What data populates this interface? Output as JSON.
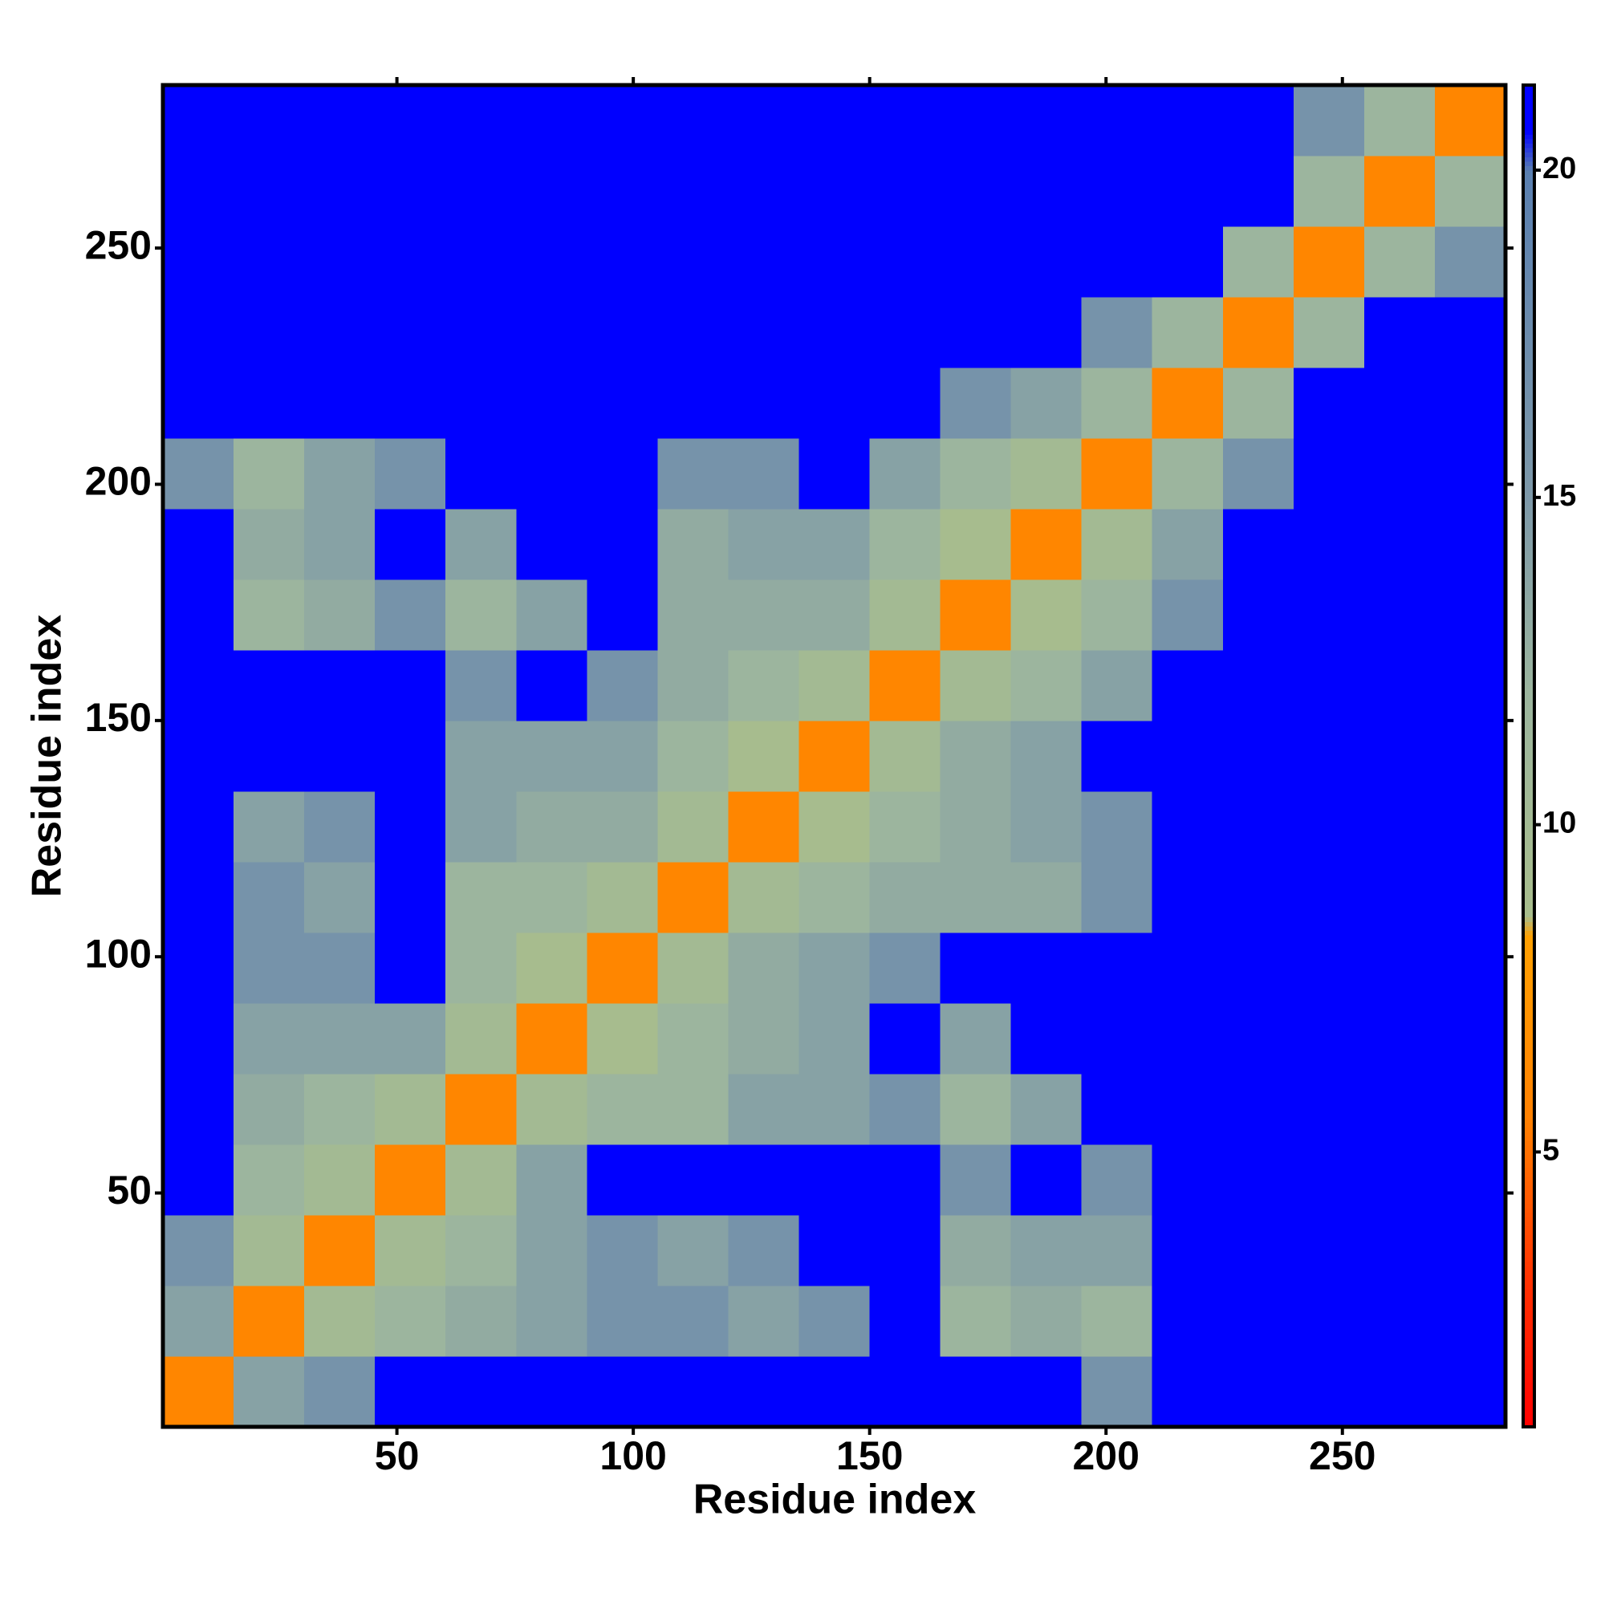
{
  "chart_data": {
    "type": "heatmap",
    "xlabel": "Residue index",
    "ylabel": "Residue index",
    "xlim": [
      0.5,
      284.5
    ],
    "ylim": [
      0.5,
      284.5
    ],
    "xticks": [
      50,
      100,
      150,
      200,
      250
    ],
    "yticks": [
      50,
      100,
      150,
      200,
      250
    ],
    "zlim": [
      0.8,
      21.3
    ],
    "zticks": [
      5,
      10,
      15,
      20
    ],
    "colorscale": [
      [
        0.8,
        "#ff0000"
      ],
      [
        3,
        "#ff3000"
      ],
      [
        5.5,
        "#ff8000"
      ],
      [
        8.3,
        "#ffa000"
      ],
      [
        8.6,
        "#a8bd8c"
      ],
      [
        12,
        "#9cb59e"
      ],
      [
        15,
        "#7d98a8"
      ],
      [
        20,
        "#5a7fb0"
      ],
      [
        20.6,
        "#0000ff"
      ],
      [
        21.3,
        "#0000ff"
      ]
    ],
    "z": [
      [
        6,
        14,
        16,
        21,
        21,
        21,
        21,
        21,
        21,
        21,
        21,
        21,
        21,
        16,
        21,
        21,
        21,
        21,
        21
      ],
      [
        14,
        6,
        10,
        12,
        13,
        14,
        16,
        16,
        14,
        16,
        21,
        12,
        13,
        12,
        21,
        21,
        21,
        21,
        21
      ],
      [
        16,
        10,
        6,
        10,
        12,
        14,
        16,
        14,
        16,
        21,
        21,
        13,
        14,
        14,
        21,
        21,
        21,
        21,
        21
      ],
      [
        21,
        12,
        10,
        6,
        10,
        14,
        21,
        21,
        21,
        21,
        21,
        16,
        21,
        16,
        21,
        21,
        21,
        21,
        21
      ],
      [
        21,
        13,
        12,
        10,
        6,
        10,
        12,
        12,
        14,
        14,
        16,
        12,
        14,
        21,
        21,
        21,
        21,
        21,
        21
      ],
      [
        21,
        14,
        14,
        14,
        10,
        6,
        9,
        12,
        13,
        14,
        21,
        14,
        21,
        21,
        21,
        21,
        21,
        21,
        21
      ],
      [
        21,
        16,
        16,
        21,
        12,
        9,
        6,
        10,
        13,
        14,
        16,
        21,
        21,
        21,
        21,
        21,
        21,
        21,
        21
      ],
      [
        21,
        16,
        14,
        21,
        12,
        12,
        10,
        6,
        10,
        12,
        13,
        13,
        13,
        16,
        21,
        21,
        21,
        21,
        21
      ],
      [
        21,
        14,
        16,
        21,
        14,
        13,
        13,
        10,
        6,
        9,
        12,
        13,
        14,
        16,
        21,
        21,
        21,
        21,
        21
      ],
      [
        21,
        21,
        21,
        21,
        14,
        14,
        14,
        12,
        9,
        6,
        10,
        13,
        14,
        21,
        21,
        21,
        21,
        21,
        21
      ],
      [
        21,
        21,
        21,
        21,
        16,
        21,
        16,
        13,
        12,
        10,
        6,
        10,
        12,
        14,
        21,
        21,
        21,
        21,
        21
      ],
      [
        21,
        12,
        13,
        16,
        12,
        14,
        21,
        13,
        13,
        13,
        10,
        6,
        9,
        12,
        16,
        21,
        21,
        21,
        21
      ],
      [
        21,
        13,
        14,
        21,
        14,
        21,
        21,
        13,
        14,
        14,
        12,
        9,
        6,
        10,
        14,
        21,
        21,
        21,
        21
      ],
      [
        16,
        12,
        14,
        16,
        21,
        21,
        21,
        16,
        16,
        21,
        14,
        12,
        10,
        6,
        12,
        16,
        21,
        21,
        21
      ],
      [
        21,
        21,
        21,
        21,
        21,
        21,
        21,
        21,
        21,
        21,
        21,
        16,
        14,
        12,
        6,
        12,
        21,
        21,
        21
      ],
      [
        21,
        21,
        21,
        21,
        21,
        21,
        21,
        21,
        21,
        21,
        21,
        21,
        21,
        16,
        12,
        6,
        12,
        21,
        21
      ],
      [
        21,
        21,
        21,
        21,
        21,
        21,
        21,
        21,
        21,
        21,
        21,
        21,
        21,
        21,
        21,
        12,
        6,
        12,
        16
      ],
      [
        21,
        21,
        21,
        21,
        21,
        21,
        21,
        21,
        21,
        21,
        21,
        21,
        21,
        21,
        21,
        21,
        12,
        6,
        12
      ],
      [
        21,
        21,
        21,
        21,
        21,
        21,
        21,
        21,
        21,
        21,
        21,
        21,
        21,
        21,
        21,
        21,
        16,
        12,
        6
      ]
    ]
  }
}
